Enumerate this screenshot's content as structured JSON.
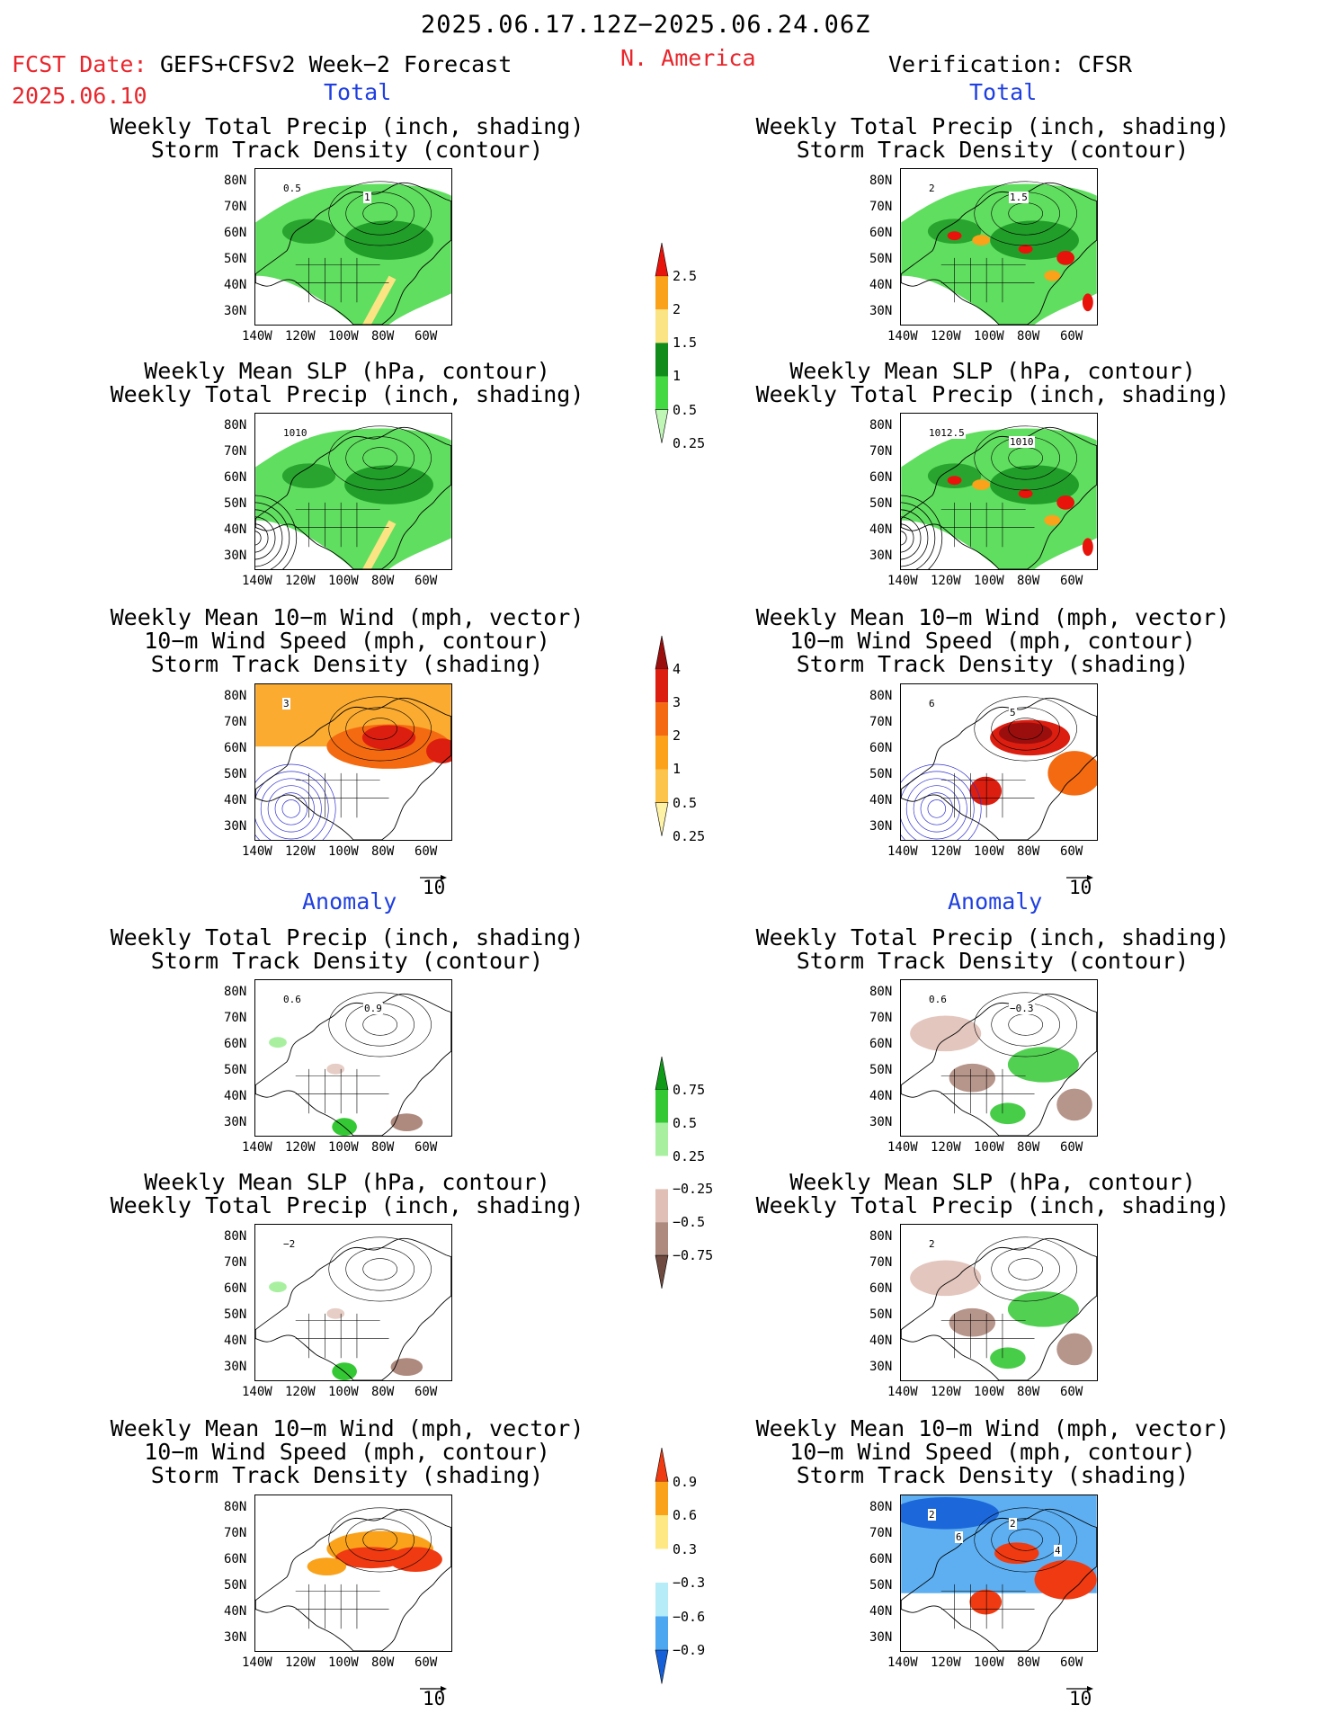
{
  "header": {
    "date_range": "2025.06.17.12Z−2025.06.24.06Z",
    "fcst_label": "FCST Date:",
    "fcst_model": "GEFS+CFSv2 Week−2 Forecast",
    "fcst_date": "2025.06.10",
    "region": "N. America",
    "verification": "Verification: CFSR"
  },
  "section_labels": {
    "total": "Total",
    "anomaly": "Anomaly"
  },
  "titles": {
    "precip_storm": [
      "Weekly Total Precip (inch, shading)",
      "Storm Track Density (contour)"
    ],
    "slp_precip": [
      "Weekly Mean SLP (hPa, contour)",
      "Weekly Total Precip (inch, shading)"
    ],
    "wind_storm": [
      "Weekly Mean 10−m Wind (mph, vector)",
      "10−m Wind Speed (mph, contour)",
      "Storm Track Density (shading)"
    ]
  },
  "axes": {
    "lat_ticks": [
      "80N",
      "70N",
      "60N",
      "50N",
      "40N",
      "30N"
    ],
    "lon_ticks": [
      "140W",
      "120W",
      "100W",
      "80W",
      "60W"
    ]
  },
  "vector_ref": "10",
  "contour_labels": {
    "fcst_total_precip": [
      "0.5",
      "1"
    ],
    "verif_total_precip": [
      "2",
      "1.5"
    ],
    "fcst_total_slp": [
      "1010"
    ],
    "verif_total_slp": [
      "1012.5",
      "1010"
    ],
    "fcst_total_wind": [
      "3"
    ],
    "verif_total_wind": [
      "6",
      "5"
    ],
    "fcst_anom_precip": [
      "0.6",
      "0.9"
    ],
    "verif_anom_precip": [
      "0.6",
      "−0.3"
    ],
    "fcst_anom_slp": [
      "−2"
    ],
    "verif_anom_slp": [
      "2"
    ],
    "verif_anom_wind": [
      "2",
      "2",
      "4",
      "6"
    ]
  },
  "colorbars": {
    "precip_total": {
      "labels": [
        "2.5",
        "2",
        "1.5",
        "1",
        "0.5",
        "0.25"
      ],
      "colors": [
        "#e8140c",
        "#f9a21a",
        "#fbe483",
        "#118c1b",
        "#44d843",
        "#bff5b5"
      ]
    },
    "storm_total": {
      "labels": [
        "4",
        "3",
        "2",
        "1",
        "0.5",
        "0.25"
      ],
      "colors": [
        "#9a0e0e",
        "#dc1e10",
        "#f46a10",
        "#fba21a",
        "#fdc44b",
        "#fdf2a6"
      ]
    },
    "precip_anom": {
      "labels": [
        "0.75",
        "0.5",
        "0.25",
        "−0.25",
        "−0.5",
        "−0.75"
      ],
      "colors": [
        "#0f9a18",
        "#34c834",
        "#a8f0a0",
        "#ffffff",
        "#e0c0b6",
        "#ae8a7e",
        "#6e4a40"
      ]
    },
    "storm_anom": {
      "labels": [
        "0.9",
        "0.6",
        "0.3",
        "−0.3",
        "−0.6",
        "−0.9"
      ],
      "colors": [
        "#ef3a12",
        "#f9a21a",
        "#fde883",
        "#ffffff",
        "#b6ecf8",
        "#4ca6f0",
        "#1560d8"
      ]
    }
  }
}
